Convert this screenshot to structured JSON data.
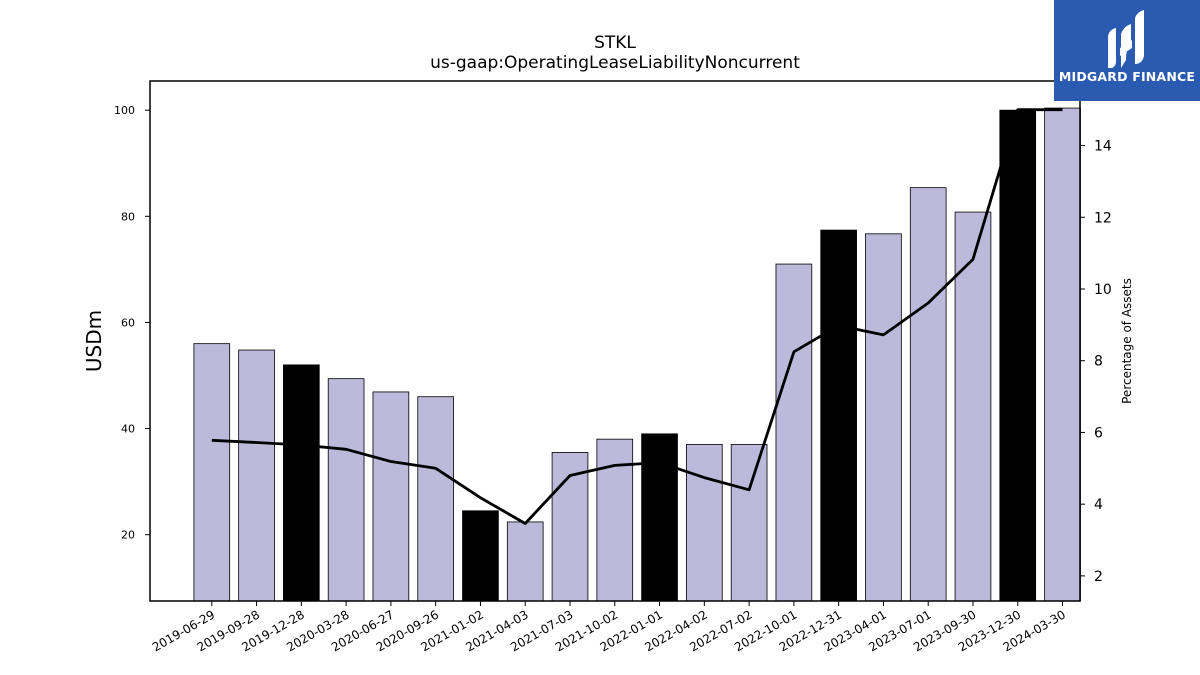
{
  "brand": {
    "name": "MIDGARD FINANCE",
    "bg_color": "#2b5bb0"
  },
  "chart_data": {
    "type": "bar",
    "title": "STKL",
    "subtitle": "us-gaap:OperatingLeaseLiabilityNoncurrent",
    "ylabel": "USDm",
    "y2label": "Percentage of Assets",
    "ylim": [
      7.5,
      105.5
    ],
    "y2lim": [
      1.3,
      15.8
    ],
    "yticks": [
      20,
      40,
      60,
      80,
      100
    ],
    "y2ticks": [
      2,
      4,
      6,
      8,
      10,
      12,
      14
    ],
    "categories": [
      "2019-06-29",
      "2019-09-28",
      "2019-12-28",
      "2020-03-28",
      "2020-06-27",
      "2020-09-26",
      "2021-01-02",
      "2021-04-03",
      "2021-07-03",
      "2021-10-02",
      "2022-01-01",
      "2022-04-02",
      "2022-07-02",
      "2022-10-01",
      "2022-12-31",
      "2023-04-01",
      "2023-07-01",
      "2023-09-30",
      "2023-12-30",
      "2024-03-30"
    ],
    "series": [
      {
        "kind": "bar",
        "values": [
          56.0,
          54.8,
          52.0,
          49.4,
          46.9,
          46.0,
          24.5,
          22.4,
          35.5,
          38.0,
          39.0,
          37.0,
          37.0,
          71.0,
          77.4,
          76.7,
          85.4,
          80.8,
          100.0,
          100.4
        ],
        "highlight": [
          false,
          false,
          true,
          false,
          false,
          false,
          true,
          false,
          false,
          false,
          true,
          false,
          false,
          false,
          true,
          false,
          false,
          false,
          true,
          false
        ],
        "color": "#bcb9db",
        "highlight_color": "#000000"
      },
      {
        "kind": "line",
        "axis": "right",
        "values": [
          5.78,
          5.72,
          5.65,
          5.53,
          5.19,
          5.0,
          4.18,
          3.46,
          4.8,
          5.08,
          5.16,
          4.74,
          4.4,
          8.25,
          8.98,
          8.72,
          9.61,
          10.83,
          15.0,
          15.0
        ],
        "color": "#000000"
      }
    ],
    "grid": false
  }
}
